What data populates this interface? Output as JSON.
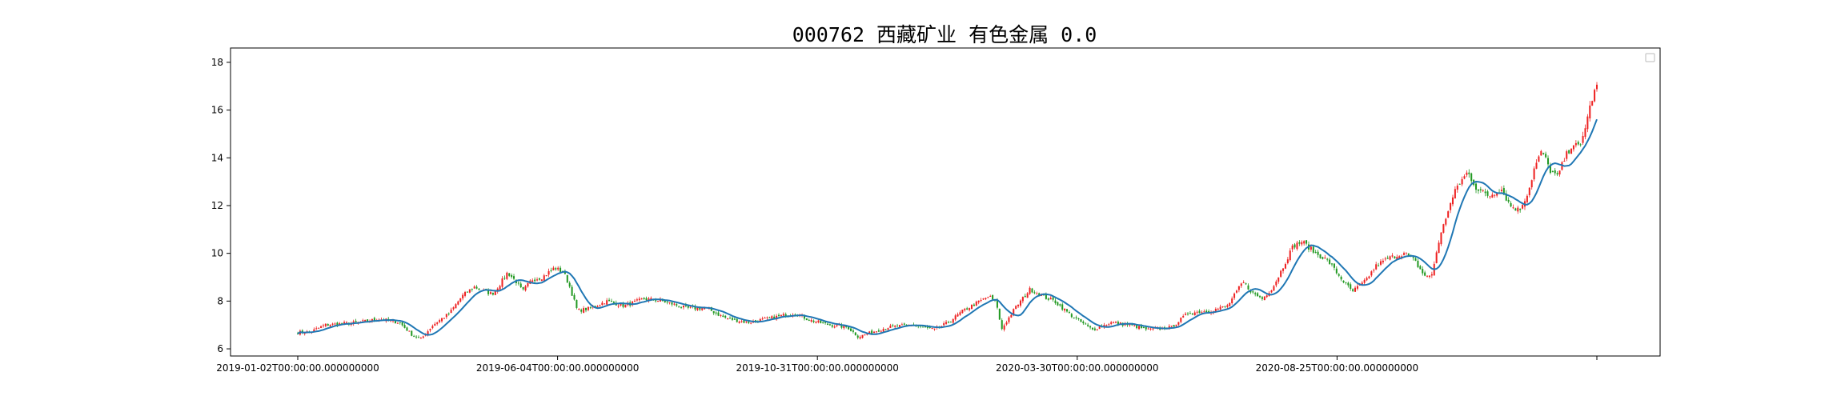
{
  "chart_data": {
    "type": "candlestick",
    "title": "000762 西藏矿业 有色金属 0.0",
    "xlabel": "",
    "ylabel": "",
    "ylim": [
      5.7,
      18.6
    ],
    "yticks": [
      6,
      8,
      10,
      12,
      14,
      16,
      18
    ],
    "x_tick_labels": [
      "2019-01-02T00:00:00.000000000",
      "2019-06-04T00:00:00.000000000",
      "2019-10-31T00:00:00.000000000",
      "2020-03-30T00:00:00.000000000",
      "2020-08-25T00:00:00.000000000",
      ""
    ],
    "legend": "top-right (empty)",
    "grid": false,
    "up_color": "#ee2222",
    "down_color": "#229922",
    "ma_color": "#1f77b4",
    "close_path": [
      [
        "2019-01-02",
        6.7
      ],
      [
        "2019-01-10",
        6.7
      ],
      [
        "2019-01-20",
        7.0
      ],
      [
        "2019-02-10",
        7.1
      ],
      [
        "2019-02-25",
        7.25
      ],
      [
        "2019-03-10",
        7.1
      ],
      [
        "2019-03-18",
        6.6
      ],
      [
        "2019-03-24",
        6.4
      ],
      [
        "2019-04-01",
        7.0
      ],
      [
        "2019-04-12",
        7.5
      ],
      [
        "2019-04-20",
        8.2
      ],
      [
        "2019-04-28",
        8.6
      ],
      [
        "2019-05-05",
        8.4
      ],
      [
        "2019-05-10",
        8.3
      ],
      [
        "2019-05-15",
        8.7
      ],
      [
        "2019-05-20",
        9.2
      ],
      [
        "2019-05-26",
        8.8
      ],
      [
        "2019-05-30",
        8.4
      ],
      [
        "2019-06-05",
        8.9
      ],
      [
        "2019-06-12",
        9.0
      ],
      [
        "2019-06-20",
        9.4
      ],
      [
        "2019-06-26",
        9.2
      ],
      [
        "2019-06-30",
        8.6
      ],
      [
        "2019-07-05",
        7.6
      ],
      [
        "2019-07-14",
        7.7
      ],
      [
        "2019-07-24",
        8.0
      ],
      [
        "2019-08-05",
        7.8
      ],
      [
        "2019-08-18",
        8.1
      ],
      [
        "2019-08-30",
        8.0
      ],
      [
        "2019-09-15",
        7.7
      ],
      [
        "2019-09-28",
        7.7
      ],
      [
        "2019-10-10",
        7.3
      ],
      [
        "2019-10-25",
        7.1
      ],
      [
        "2019-11-10",
        7.3
      ],
      [
        "2019-11-25",
        7.5
      ],
      [
        "2019-12-05",
        7.2
      ],
      [
        "2019-12-18",
        7.0
      ],
      [
        "2019-12-30",
        6.9
      ],
      [
        "2020-01-06",
        6.5
      ],
      [
        "2020-01-15",
        6.7
      ],
      [
        "2020-01-25",
        6.9
      ],
      [
        "2020-02-10",
        7.0
      ],
      [
        "2020-02-25",
        6.8
      ],
      [
        "2020-03-05",
        7.1
      ],
      [
        "2020-03-15",
        7.6
      ],
      [
        "2020-03-26",
        8.0
      ],
      [
        "2020-04-01",
        8.2
      ],
      [
        "2020-04-06",
        7.9
      ],
      [
        "2020-04-09",
        6.8
      ],
      [
        "2020-04-18",
        7.7
      ],
      [
        "2020-04-28",
        8.5
      ],
      [
        "2020-05-06",
        8.2
      ],
      [
        "2020-05-14",
        8.0
      ],
      [
        "2020-05-25",
        7.4
      ],
      [
        "2020-06-08",
        6.8
      ],
      [
        "2020-06-20",
        7.1
      ],
      [
        "2020-07-02",
        7.0
      ],
      [
        "2020-07-15",
        6.8
      ],
      [
        "2020-07-30",
        6.9
      ],
      [
        "2020-08-10",
        7.5
      ],
      [
        "2020-08-25",
        7.6
      ],
      [
        "2020-09-05",
        7.8
      ],
      [
        "2020-09-15",
        8.8
      ],
      [
        "2020-09-22",
        8.3
      ],
      [
        "2020-09-28",
        8.1
      ],
      [
        "2020-10-05",
        8.6
      ],
      [
        "2020-10-12",
        9.5
      ],
      [
        "2020-10-18",
        10.3
      ],
      [
        "2020-10-24",
        10.5
      ],
      [
        "2020-11-02",
        10.0
      ],
      [
        "2020-11-10",
        9.7
      ],
      [
        "2020-11-18",
        9.0
      ],
      [
        "2020-11-26",
        8.4
      ],
      [
        "2020-12-04",
        8.8
      ],
      [
        "2020-12-12",
        9.5
      ],
      [
        "2020-12-20",
        9.8
      ],
      [
        "2020-12-30",
        10.0
      ],
      [
        "2021-01-06",
        9.7
      ],
      [
        "2021-01-12",
        9.1
      ],
      [
        "2021-01-17",
        9.0
      ],
      [
        "2021-01-22",
        10.5
      ],
      [
        "2021-01-28",
        11.8
      ],
      [
        "2021-02-03",
        12.8
      ],
      [
        "2021-02-10",
        13.4
      ],
      [
        "2021-02-16",
        12.7
      ],
      [
        "2021-02-24",
        12.4
      ],
      [
        "2021-03-04",
        12.7
      ],
      [
        "2021-03-10",
        12.0
      ],
      [
        "2021-03-16",
        11.8
      ],
      [
        "2021-03-22",
        12.6
      ],
      [
        "2021-03-26",
        13.6
      ],
      [
        "2021-03-31",
        14.3
      ],
      [
        "2021-04-05",
        13.5
      ],
      [
        "2021-04-10",
        13.2
      ],
      [
        "2021-04-15",
        14.0
      ],
      [
        "2021-04-20",
        14.6
      ],
      [
        "2021-04-25",
        14.4
      ],
      [
        "2021-04-29",
        15.5
      ],
      [
        "2021-05-03",
        16.5
      ],
      [
        "2021-05-06",
        17.0
      ]
    ]
  }
}
